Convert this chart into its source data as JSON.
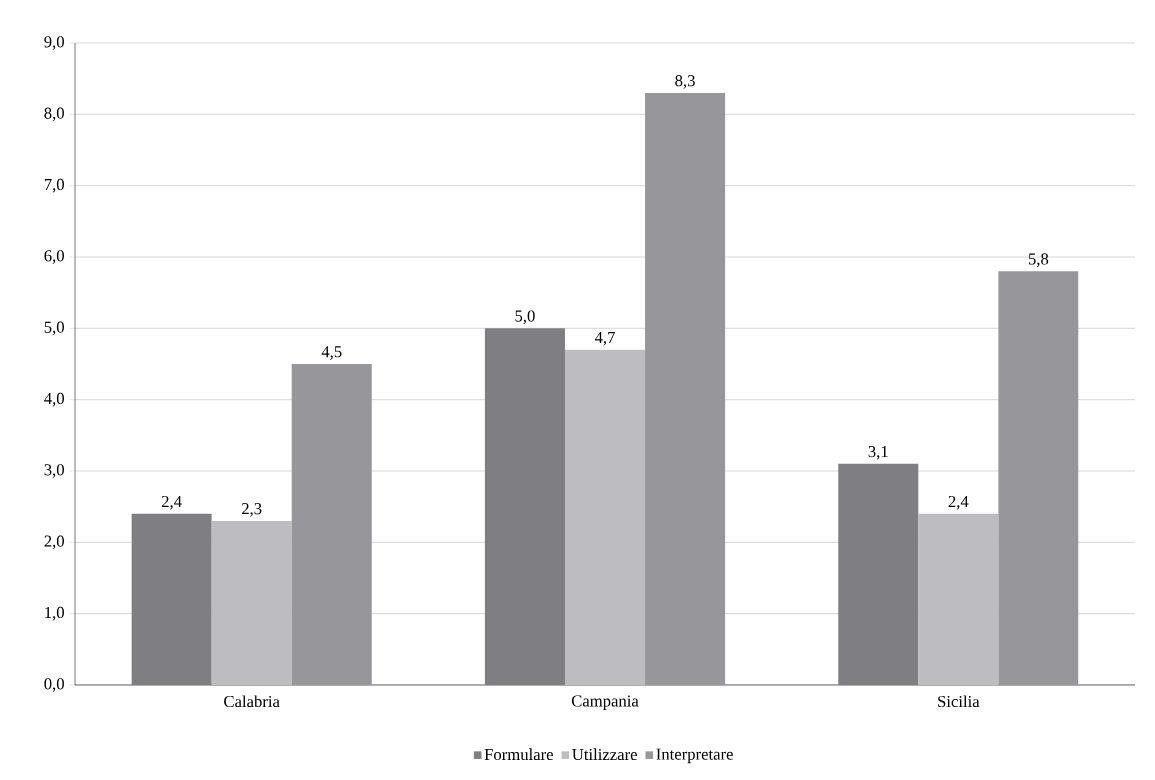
{
  "chart_data": {
    "type": "bar",
    "categories": [
      "Calabria",
      "Campania",
      "Sicilia"
    ],
    "series": [
      {
        "name": "Formulare",
        "color": "#7f7f83",
        "values": [
          2.4,
          5.0,
          3.1
        ],
        "value_labels": [
          "2,4",
          "5,0",
          "3,1"
        ]
      },
      {
        "name": "Utilizzare",
        "color": "#bdbdc1",
        "values": [
          2.3,
          4.7,
          2.4
        ],
        "value_labels": [
          "2,3",
          "4,7",
          "2,4"
        ]
      },
      {
        "name": "Interpretare",
        "color": "#97979b",
        "values": [
          4.5,
          8.3,
          5.8
        ],
        "value_labels": [
          "4,5",
          "8,3",
          "5,8"
        ]
      }
    ],
    "ylim": [
      0,
      9
    ],
    "yticks": [
      {
        "value": 0,
        "label": "0,0"
      },
      {
        "value": 1,
        "label": "1,0"
      },
      {
        "value": 2,
        "label": "2,0"
      },
      {
        "value": 3,
        "label": "3,0"
      },
      {
        "value": 4,
        "label": "4,0"
      },
      {
        "value": 5,
        "label": "5,0"
      },
      {
        "value": 6,
        "label": "6,0"
      },
      {
        "value": 7,
        "label": "7,0"
      },
      {
        "value": 8,
        "label": "8,0"
      },
      {
        "value": 9,
        "label": "9,0"
      }
    ],
    "grid": "y",
    "legend": "bottom"
  }
}
